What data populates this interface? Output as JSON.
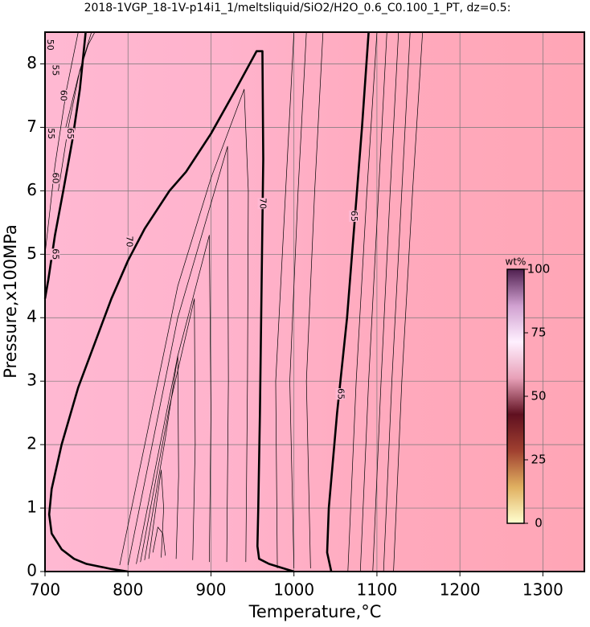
{
  "chart_data": {
    "type": "contour",
    "title": "2018-1VGP_18-1V-p14i1_1/meltsliquid/SiO2/H2O_0.6_C0.100_1_PT, dz=0.5:",
    "x_label": "Temperature,°C",
    "y_label": "Pressure,x100MPa",
    "xlim": [
      700,
      1350
    ],
    "ylim": [
      0,
      8.5
    ],
    "xticks": [
      700,
      800,
      900,
      1000,
      1100,
      1200,
      1300
    ],
    "yticks": [
      0,
      1,
      2,
      3,
      4,
      5,
      6,
      7,
      8
    ],
    "grid": true,
    "field_colors": [
      "#ffb8d2",
      "#ffb3cc",
      "#ffa9bc",
      "#ffa6b6"
    ],
    "contours": [
      {
        "bold": true,
        "x": [
          749,
          742,
          733,
          722,
          712,
          704,
          700
        ],
        "y": [
          8.5,
          7.6,
          6.8,
          6.0,
          5.3,
          4.6,
          4.3
        ]
      },
      {
        "bold": true,
        "x": [
          800,
          780,
          750,
          735,
          720,
          708,
          705,
          708,
          720,
          740,
          760,
          780,
          800,
          820,
          850,
          870,
          880,
          900,
          930,
          955,
          962,
          963,
          961,
          959,
          957,
          956,
          958,
          970,
          990,
          1000
        ],
        "y": [
          0,
          0.04,
          0.12,
          0.2,
          0.35,
          0.6,
          0.9,
          1.3,
          2.0,
          2.9,
          3.6,
          4.3,
          4.9,
          5.4,
          6.0,
          6.3,
          6.5,
          6.9,
          7.6,
          8.2,
          8.2,
          6.5,
          4.5,
          2.5,
          1.0,
          0.4,
          0.2,
          0.12,
          0.04,
          0
        ]
      },
      {
        "bold": true,
        "x": [
          1045,
          1040,
          1042,
          1052,
          1064,
          1073,
          1082,
          1090
        ],
        "y": [
          0,
          0.3,
          1.0,
          2.5,
          4.0,
          5.5,
          7.0,
          8.5
        ]
      },
      {
        "bold": false,
        "x": [
          725,
          740,
          752,
          760
        ],
        "y": [
          7.0,
          7.8,
          8.3,
          8.5
        ]
      },
      {
        "bold": false,
        "x": [
          716,
          728,
          742,
          756
        ],
        "y": [
          6.0,
          7.0,
          7.9,
          8.5
        ]
      },
      {
        "bold": false,
        "x": [
          700,
          712,
          726,
          740
        ],
        "y": [
          5.0,
          6.4,
          7.6,
          8.5
        ]
      },
      {
        "bold": false,
        "x": [
          790,
          860,
          900,
          940,
          945,
          944,
          942
        ],
        "y": [
          0.1,
          4.5,
          6.2,
          7.6,
          6.0,
          3.0,
          0.15
        ]
      },
      {
        "bold": false,
        "x": [
          800,
          860,
          900,
          920,
          921,
          919
        ],
        "y": [
          0.1,
          4.0,
          5.8,
          6.7,
          3.0,
          0.15
        ]
      },
      {
        "bold": false,
        "x": [
          810,
          860,
          898,
          900,
          898
        ],
        "y": [
          0.12,
          3.4,
          5.3,
          2.5,
          0.15
        ]
      },
      {
        "bold": false,
        "x": [
          815,
          850,
          880,
          881,
          878
        ],
        "y": [
          0.15,
          2.6,
          4.3,
          2.0,
          0.18
        ]
      },
      {
        "bold": false,
        "x": [
          820,
          845,
          860,
          861,
          858
        ],
        "y": [
          0.18,
          2.1,
          3.4,
          1.5,
          0.2
        ]
      },
      {
        "bold": false,
        "x": [
          825,
          840,
          843,
          840
        ],
        "y": [
          0.2,
          1.6,
          1.0,
          0.22
        ]
      },
      {
        "bold": false,
        "x": [
          830,
          836,
          842,
          845
        ],
        "y": [
          0.3,
          0.7,
          0.6,
          0.25
        ]
      },
      {
        "bold": false,
        "x": [
          980,
          978,
          990,
          1000
        ],
        "y": [
          0.05,
          3.0,
          6.0,
          8.5
        ]
      },
      {
        "bold": false,
        "x": [
          1000,
          995,
          1005,
          1015
        ],
        "y": [
          0.05,
          3.0,
          6.0,
          8.5
        ]
      },
      {
        "bold": false,
        "x": [
          1020,
          1015,
          1025,
          1035
        ],
        "y": [
          0.05,
          3.0,
          6.0,
          8.5
        ]
      },
      {
        "bold": false,
        "x": [
          1065,
          1075,
          1088,
          1100
        ],
        "y": [
          0,
          3.0,
          6.0,
          8.5
        ]
      },
      {
        "bold": false,
        "x": [
          1080,
          1090,
          1102,
          1112
        ],
        "y": [
          0,
          3.0,
          6.0,
          8.5
        ]
      },
      {
        "bold": false,
        "x": [
          1095,
          1105,
          1116,
          1126
        ],
        "y": [
          0,
          3.0,
          6.0,
          8.5
        ]
      },
      {
        "bold": false,
        "x": [
          1108,
          1118,
          1130,
          1140
        ],
        "y": [
          0,
          3.0,
          6.0,
          8.5
        ]
      },
      {
        "bold": false,
        "x": [
          1120,
          1130,
          1143,
          1155
        ],
        "y": [
          0,
          3.0,
          6.0,
          8.5
        ]
      }
    ],
    "contour_labels": [
      {
        "text": "70",
        "x": 962,
        "y": 5.8
      },
      {
        "text": "70",
        "x": 801,
        "y": 5.2
      },
      {
        "text": "65",
        "x": 1072,
        "y": 5.6
      },
      {
        "text": "65",
        "x": 1056,
        "y": 2.8
      },
      {
        "text": "65",
        "x": 730,
        "y": 6.9
      },
      {
        "text": "65",
        "x": 712,
        "y": 5.0
      },
      {
        "text": "60",
        "x": 722,
        "y": 7.5
      },
      {
        "text": "60",
        "x": 712,
        "y": 6.2
      },
      {
        "text": "55",
        "x": 712,
        "y": 7.9
      },
      {
        "text": "55",
        "x": 707,
        "y": 6.9
      },
      {
        "text": "50",
        "x": 706,
        "y": 8.3
      }
    ],
    "colorbar": {
      "label": "wt%",
      "lim": [
        0,
        100
      ],
      "ticks": [
        0,
        25,
        50,
        75,
        100
      ],
      "colors": [
        "#ffffd0",
        "#e0b060",
        "#a04030",
        "#601020",
        "#e8a0b8",
        "#fff0ff",
        "#d0a0d0",
        "#502050"
      ]
    }
  }
}
